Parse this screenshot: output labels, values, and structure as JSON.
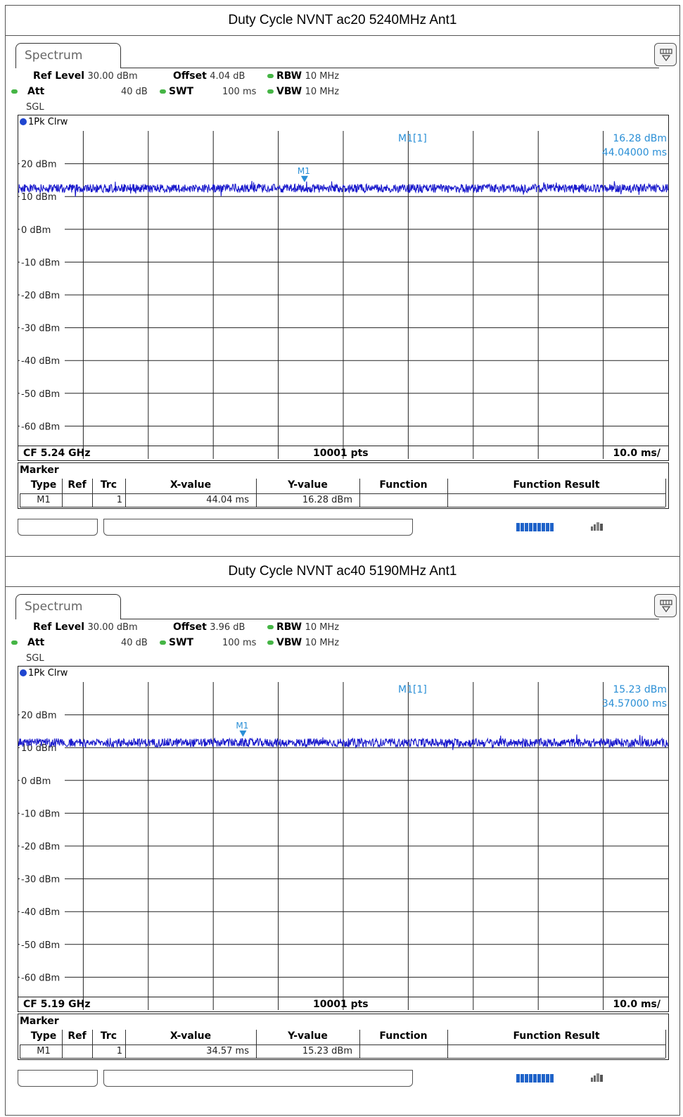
{
  "panels": [
    {
      "section_title": "Duty Cycle NVNT ac20 5240MHz Ant1",
      "tab_label": "Spectrum",
      "ref_level_label": "Ref Level",
      "ref_level_value": "30.00 dBm",
      "offset_label": "Offset",
      "offset_value": "4.04 dB",
      "rbw_label": "RBW",
      "rbw_value": "10 MHz",
      "att_label": "Att",
      "att_value": "40 dB",
      "swt_label": "SWT",
      "swt_value": "100 ms",
      "vbw_label": "VBW",
      "vbw_value": "10 MHz",
      "sweep_mode": "SGL",
      "trace_label": "1Pk Clrw",
      "marker_readout_label": "M1[1]",
      "marker_readout_level": "16.28 dBm",
      "marker_readout_time": "44.04000 ms",
      "marker_tag": "M1",
      "footer_cf": "CF 5.24 GHz",
      "footer_pts": "10001 pts",
      "footer_div": "10.0 ms/",
      "marker_table": {
        "title": "Marker",
        "headers": [
          "Type",
          "Ref",
          "Trc",
          "X-value",
          "Y-value",
          "Function",
          "Function Result"
        ],
        "row": {
          "type": "M1",
          "ref": "",
          "trc": "1",
          "x": "44.04 ms",
          "y": "16.28 dBm",
          "function": "",
          "result": ""
        }
      },
      "chart_data": {
        "type": "line",
        "x_unit": "ms",
        "y_unit": "dBm",
        "xlim": [
          0,
          100
        ],
        "ylim": [
          -70,
          30
        ],
        "ytick_labels": [
          "20 dBm",
          "10 dBm",
          "0 dBm",
          "-10 dBm",
          "-20 dBm",
          "-30 dBm",
          "-40 dBm",
          "-50 dBm",
          "-60 dBm"
        ],
        "ytick_values": [
          20,
          10,
          0,
          -10,
          -20,
          -30,
          -40,
          -50,
          -60
        ],
        "grid": true,
        "series": [
          {
            "name": "1Pk Clrw",
            "level": 12.5,
            "noise": 1.3,
            "color": "#1a1acc"
          }
        ],
        "marker": {
          "label": "M1",
          "x": 44.04,
          "y": 16.28
        }
      }
    },
    {
      "section_title": "Duty Cycle NVNT ac40 5190MHz Ant1",
      "tab_label": "Spectrum",
      "ref_level_label": "Ref Level",
      "ref_level_value": "30.00 dBm",
      "offset_label": "Offset",
      "offset_value": "3.96 dB",
      "rbw_label": "RBW",
      "rbw_value": "10 MHz",
      "att_label": "Att",
      "att_value": "40 dB",
      "swt_label": "SWT",
      "swt_value": "100 ms",
      "vbw_label": "VBW",
      "vbw_value": "10 MHz",
      "sweep_mode": "SGL",
      "trace_label": "1Pk Clrw",
      "marker_readout_label": "M1[1]",
      "marker_readout_level": "15.23 dBm",
      "marker_readout_time": "34.57000 ms",
      "marker_tag": "M1",
      "footer_cf": "CF 5.19 GHz",
      "footer_pts": "10001 pts",
      "footer_div": "10.0 ms/",
      "marker_table": {
        "title": "Marker",
        "headers": [
          "Type",
          "Ref",
          "Trc",
          "X-value",
          "Y-value",
          "Function",
          "Function Result"
        ],
        "row": {
          "type": "M1",
          "ref": "",
          "trc": "1",
          "x": "34.57 ms",
          "y": "15.23 dBm",
          "function": "",
          "result": ""
        }
      },
      "chart_data": {
        "type": "line",
        "x_unit": "ms",
        "y_unit": "dBm",
        "xlim": [
          0,
          100
        ],
        "ylim": [
          -70,
          30
        ],
        "ytick_labels": [
          "20 dBm",
          "10 dBm",
          "0 dBm",
          "-10 dBm",
          "-20 dBm",
          "-30 dBm",
          "-40 dBm",
          "-50 dBm",
          "-60 dBm"
        ],
        "ytick_values": [
          20,
          10,
          0,
          -10,
          -20,
          -30,
          -40,
          -50,
          -60
        ],
        "grid": true,
        "series": [
          {
            "name": "1Pk Clrw",
            "level": 11.5,
            "noise": 1.3,
            "color": "#1a1acc"
          }
        ],
        "marker": {
          "label": "M1",
          "x": 34.57,
          "y": 15.23
        }
      }
    }
  ],
  "colors": {
    "trace": "#1a1acc",
    "marker": "#2a8fd6",
    "status_led": "#45b545",
    "progress": "#1f63c9"
  }
}
